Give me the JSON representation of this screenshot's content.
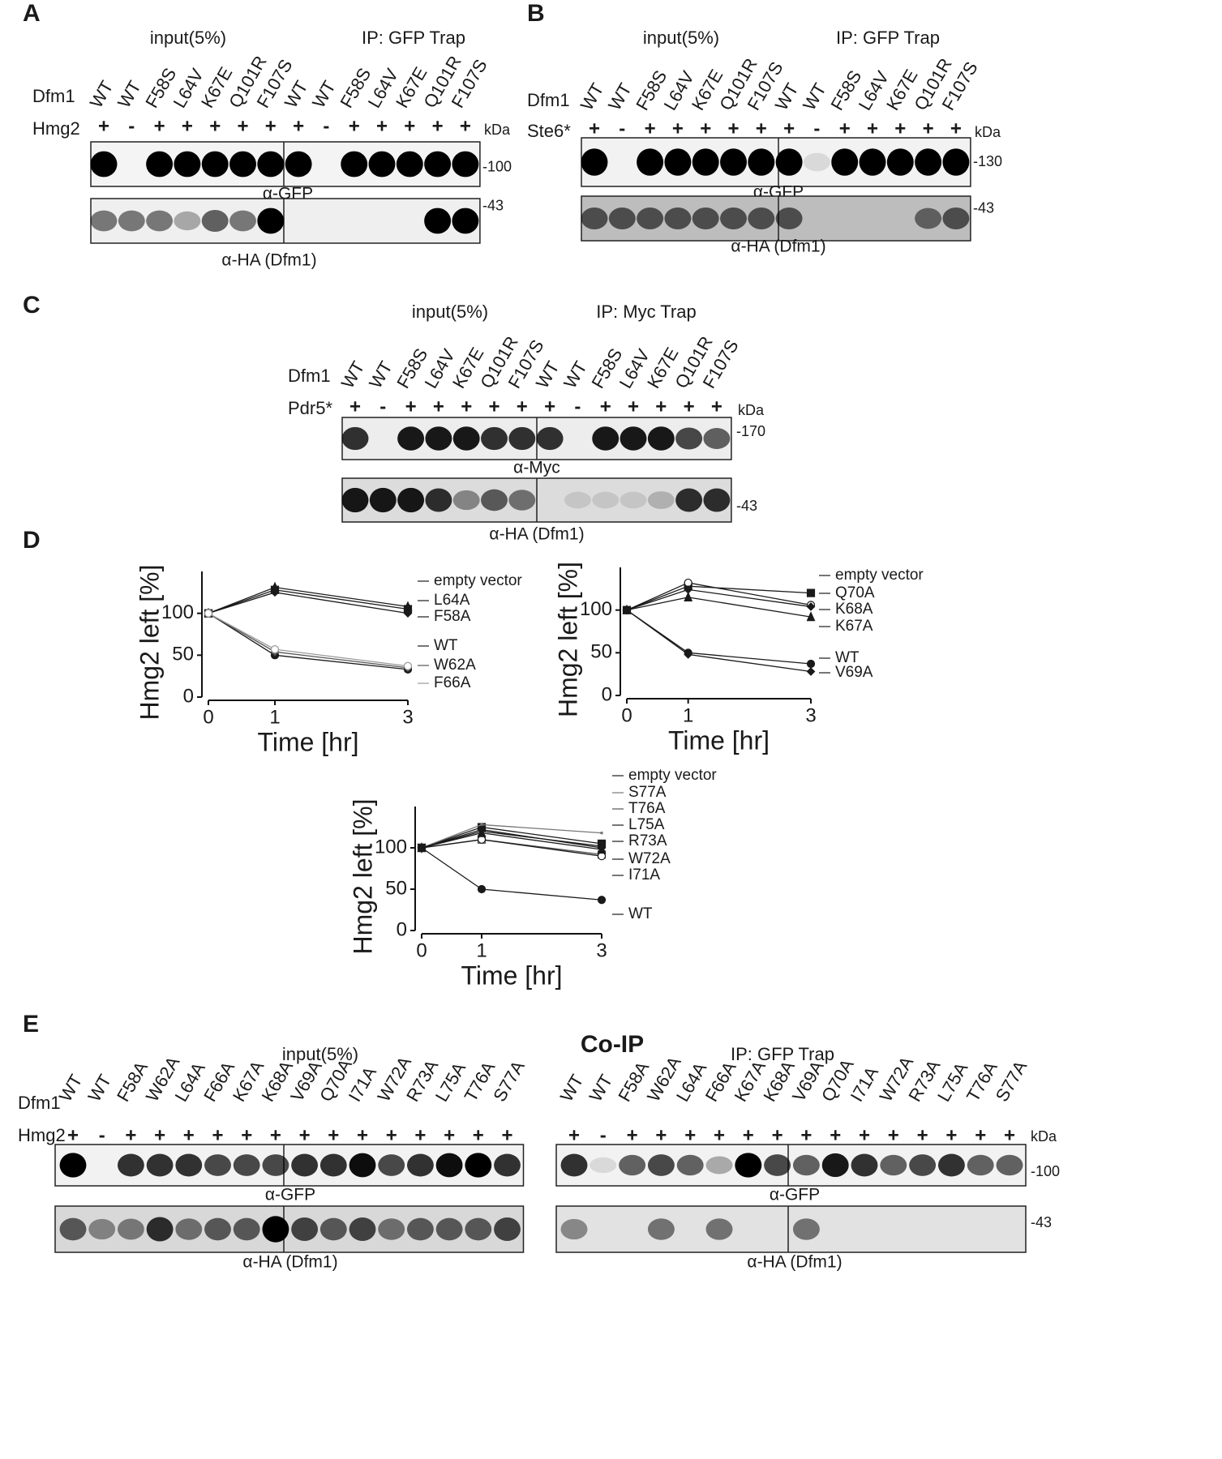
{
  "figure": {
    "A": {
      "letter": "A",
      "groups": [
        "input(5%)",
        "IP: GFP Trap"
      ],
      "rows": [
        "Dfm1",
        "Hmg2"
      ],
      "lanes": [
        {
          "name": "WT",
          "color": "#1a1a1a"
        },
        {
          "name": "WT",
          "color": "#1a1a1a"
        },
        {
          "name": "F58S",
          "color": "#c0282d"
        },
        {
          "name": "L64V",
          "color": "#c0282d"
        },
        {
          "name": "K67E",
          "color": "#c0282d"
        },
        {
          "name": "Q101R",
          "color": "#2e7d3a"
        },
        {
          "name": "F107S",
          "color": "#2e7d3a"
        },
        {
          "name": "WT",
          "color": "#1a1a1a"
        },
        {
          "name": "WT",
          "color": "#1a1a1a"
        },
        {
          "name": "F58S",
          "color": "#c0282d"
        },
        {
          "name": "L64V",
          "color": "#c0282d"
        },
        {
          "name": "K67E",
          "color": "#c0282d"
        },
        {
          "name": "Q101R",
          "color": "#2e7d3a"
        },
        {
          "name": "F107S",
          "color": "#2e7d3a"
        }
      ],
      "signs": [
        "+",
        "-",
        "+",
        "+",
        "+",
        "+",
        "+",
        "+",
        "-",
        "+",
        "+",
        "+",
        "+",
        "+"
      ],
      "unit": "kDa",
      "blots": [
        {
          "label": "α-GFP",
          "marker": "-100"
        },
        {
          "label": "α-HA (Dfm1)",
          "marker": "-43"
        }
      ]
    },
    "B": {
      "letter": "B",
      "groups": [
        "input(5%)",
        "IP: GFP Trap"
      ],
      "rows": [
        "Dfm1",
        "Ste6*"
      ],
      "lanes": [
        {
          "name": "WT",
          "color": "#1a1a1a"
        },
        {
          "name": "WT",
          "color": "#1a1a1a"
        },
        {
          "name": "F58S",
          "color": "#c0282d"
        },
        {
          "name": "L64V",
          "color": "#c0282d"
        },
        {
          "name": "K67E",
          "color": "#c0282d"
        },
        {
          "name": "Q101R",
          "color": "#2e7d3a"
        },
        {
          "name": "F107S",
          "color": "#2e7d3a"
        },
        {
          "name": "WT",
          "color": "#1a1a1a"
        },
        {
          "name": "WT",
          "color": "#1a1a1a"
        },
        {
          "name": "F58S",
          "color": "#c0282d"
        },
        {
          "name": "L64V",
          "color": "#c0282d"
        },
        {
          "name": "K67E",
          "color": "#c0282d"
        },
        {
          "name": "Q101R",
          "color": "#2e7d3a"
        },
        {
          "name": "F107S",
          "color": "#2e7d3a"
        }
      ],
      "signs": [
        "+",
        "-",
        "+",
        "+",
        "+",
        "+",
        "+",
        "+",
        "-",
        "+",
        "+",
        "+",
        "+",
        "+"
      ],
      "unit": "kDa",
      "blots": [
        {
          "label": "α-GFP",
          "marker": "-130"
        },
        {
          "label": "α-HA (Dfm1)",
          "marker": "-43"
        }
      ]
    },
    "C": {
      "letter": "C",
      "groups": [
        "input(5%)",
        "IP: Myc Trap"
      ],
      "rows": [
        "Dfm1",
        "Pdr5*"
      ],
      "lanes": [
        {
          "name": "WT",
          "color": "#1a1a1a"
        },
        {
          "name": "WT",
          "color": "#1a1a1a"
        },
        {
          "name": "F58S",
          "color": "#c0282d"
        },
        {
          "name": "L64V",
          "color": "#c0282d"
        },
        {
          "name": "K67E",
          "color": "#c0282d"
        },
        {
          "name": "Q101R",
          "color": "#2e7d3a"
        },
        {
          "name": "F107S",
          "color": "#2e7d3a"
        },
        {
          "name": "WT",
          "color": "#1a1a1a"
        },
        {
          "name": "WT",
          "color": "#1a1a1a"
        },
        {
          "name": "F58S",
          "color": "#c0282d"
        },
        {
          "name": "L64V",
          "color": "#c0282d"
        },
        {
          "name": "K67E",
          "color": "#c0282d"
        },
        {
          "name": "Q101R",
          "color": "#2e7d3a"
        },
        {
          "name": "F107S",
          "color": "#2e7d3a"
        }
      ],
      "signs": [
        "+",
        "-",
        "+",
        "+",
        "+",
        "+",
        "+",
        "+",
        "-",
        "+",
        "+",
        "+",
        "+",
        "+"
      ],
      "unit": "kDa",
      "blots": [
        {
          "label": "α-Myc",
          "marker": "-170"
        },
        {
          "label": "α-HA (Dfm1)",
          "marker": "-43"
        }
      ]
    },
    "D": {
      "letter": "D"
    },
    "E": {
      "letter": "E",
      "title": "Co-IP",
      "rows": [
        "Dfm1",
        "Hmg2"
      ],
      "left": {
        "group": "input(5%)",
        "lanes": [
          "WT",
          "WT",
          "F58A",
          "W62A",
          "L64A",
          "F66A",
          "K67A",
          "K68A",
          "V69A",
          "Q70A",
          "I71A",
          "W72A",
          "R73A",
          "L75A",
          "T76A",
          "S77A"
        ],
        "signs": [
          "+",
          "-",
          "+",
          "+",
          "+",
          "+",
          "+",
          "+",
          "+",
          "+",
          "+",
          "+",
          "+",
          "+",
          "+",
          "+"
        ],
        "blots": [
          "α-GFP",
          "α-HA (Dfm1)"
        ]
      },
      "right": {
        "group": "IP: GFP Trap",
        "lanes": [
          "WT",
          "WT",
          "F58A",
          "W62A",
          "L64A",
          "F66A",
          "K67A",
          "K68A",
          "V69A",
          "Q70A",
          "I71A",
          "W72A",
          "R73A",
          "L75A",
          "T76A",
          "S77A"
        ],
        "signs": [
          "+",
          "-",
          "+",
          "+",
          "+",
          "+",
          "+",
          "+",
          "+",
          "+",
          "+",
          "+",
          "+",
          "+",
          "+",
          "+"
        ],
        "blots": [
          "α-GFP",
          "α-HA (Dfm1)"
        ],
        "unit": "kDa",
        "markers": [
          "-100",
          "-43"
        ]
      }
    }
  },
  "chart_data": [
    {
      "type": "line",
      "xlabel": "Time [hr]",
      "ylabel": "Hmg2 left [%]",
      "x": [
        0,
        1,
        3
      ],
      "xlim": [
        0,
        3
      ],
      "xticks": [
        0,
        1,
        3
      ],
      "ylim": [
        0,
        150
      ],
      "yticks": [
        0,
        50,
        100
      ],
      "series": [
        {
          "name": "empty vector",
          "color": "#1a1a1a",
          "label_color": "#1a1a1a",
          "marker": "square",
          "values": [
            100,
            128,
            105
          ]
        },
        {
          "name": "L64A",
          "color": "#1a1a1a",
          "label_color": "#c0282d",
          "marker": "diamond",
          "values": [
            100,
            125,
            100
          ]
        },
        {
          "name": "F58A",
          "color": "#1a1a1a",
          "label_color": "#c0282d",
          "marker": "triangle",
          "values": [
            100,
            131,
            108
          ]
        },
        {
          "name": "WT",
          "color": "#1a1a1a",
          "label_color": "#1a1a1a",
          "marker": "circle",
          "values": [
            100,
            50,
            33
          ]
        },
        {
          "name": "W62A",
          "color": "#555555",
          "label_color": "#1a1a1a",
          "marker": "diamond",
          "values": [
            100,
            54,
            35
          ]
        },
        {
          "name": "F66A",
          "color": "#999999",
          "label_color": "#1a1a1a",
          "marker": "open-circle",
          "values": [
            100,
            57,
            37
          ]
        }
      ]
    },
    {
      "type": "line",
      "xlabel": "Time [hr]",
      "ylabel": "Hmg2 left [%]",
      "x": [
        0,
        1,
        3
      ],
      "xlim": [
        0,
        3
      ],
      "xticks": [
        0,
        1,
        3
      ],
      "ylim": [
        0,
        150
      ],
      "yticks": [
        0,
        50,
        100
      ],
      "series": [
        {
          "name": "empty vector",
          "color": "#1a1a1a",
          "label_color": "#1a1a1a",
          "marker": "square",
          "values": [
            100,
            128,
            120
          ]
        },
        {
          "name": "Q70A",
          "color": "#1a1a1a",
          "label_color": "#c0282d",
          "marker": "open-circle",
          "values": [
            100,
            132,
            106
          ]
        },
        {
          "name": "K68A",
          "color": "#1a1a1a",
          "label_color": "#c0282d",
          "marker": "diamond",
          "values": [
            100,
            124,
            104
          ]
        },
        {
          "name": "K67A",
          "color": "#1a1a1a",
          "label_color": "#c0282d",
          "marker": "triangle",
          "values": [
            100,
            115,
            92
          ]
        },
        {
          "name": "WT",
          "color": "#1a1a1a",
          "label_color": "#1a1a1a",
          "marker": "circle",
          "values": [
            100,
            50,
            37
          ]
        },
        {
          "name": "V69A",
          "color": "#1a1a1a",
          "label_color": "#1a1a1a",
          "marker": "diamond",
          "values": [
            100,
            48,
            28
          ]
        }
      ]
    },
    {
      "type": "line",
      "xlabel": "Time [hr]",
      "ylabel": "Hmg2 left [%]",
      "x": [
        0,
        1,
        3
      ],
      "xlim": [
        0,
        3
      ],
      "xticks": [
        0,
        1,
        3
      ],
      "ylim": [
        0,
        150
      ],
      "yticks": [
        0,
        50,
        100
      ],
      "series": [
        {
          "name": "empty vector",
          "color": "#1a1a1a",
          "label_color": "#1a1a1a",
          "marker": "square",
          "values": [
            100,
            125,
            105
          ]
        },
        {
          "name": "S77A",
          "color": "#777777",
          "label_color": "#c0282d",
          "marker": "none",
          "values": [
            100,
            128,
            118
          ]
        },
        {
          "name": "T76A",
          "color": "#555555",
          "label_color": "#c0282d",
          "marker": "open-square",
          "values": [
            100,
            110,
            92
          ]
        },
        {
          "name": "L75A",
          "color": "#1a1a1a",
          "label_color": "#c0282d",
          "marker": "open-circle",
          "values": [
            100,
            110,
            90
          ]
        },
        {
          "name": "R73A",
          "color": "#1a1a1a",
          "label_color": "#c0282d",
          "marker": "diamond",
          "values": [
            100,
            122,
            100
          ]
        },
        {
          "name": "W72A",
          "color": "#1a1a1a",
          "label_color": "#c0282d",
          "marker": "triangle-down",
          "values": [
            100,
            120,
            102
          ]
        },
        {
          "name": "I71A",
          "color": "#1a1a1a",
          "label_color": "#c0282d",
          "marker": "triangle",
          "values": [
            100,
            118,
            98
          ]
        },
        {
          "name": "WT",
          "color": "#1a1a1a",
          "label_color": "#1a1a1a",
          "marker": "circle",
          "values": [
            100,
            50,
            37
          ]
        }
      ]
    }
  ]
}
